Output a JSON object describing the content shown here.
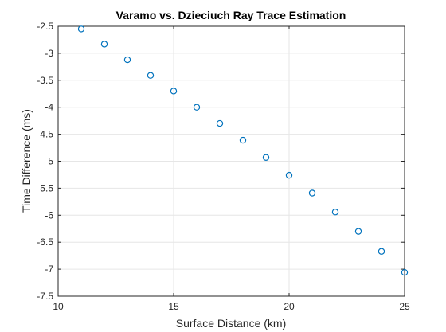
{
  "chart_data": {
    "type": "scatter",
    "title": "Varamo vs. Dzieciuch Ray Trace Estimation",
    "xlabel": "Surface Distance (km)",
    "ylabel": "Time Difference (ms)",
    "xlim": [
      10,
      25
    ],
    "ylim": [
      -7.5,
      -2.5
    ],
    "xticks": [
      10,
      15,
      20,
      25
    ],
    "yticks": [
      -7.5,
      -7,
      -6.5,
      -6,
      -5.5,
      -5,
      -4.5,
      -4,
      -3.5,
      -3,
      -2.5
    ],
    "xtick_labels": [
      "10",
      "15",
      "20",
      "25"
    ],
    "ytick_labels": [
      "-7.5",
      "-7",
      "-6.5",
      "-6",
      "-5.5",
      "-5",
      "-4.5",
      "-4",
      "-3.5",
      "-3",
      "-2.5"
    ],
    "grid": true,
    "marker": "circle-open",
    "colors": {
      "marker_edge": "#0072BD",
      "grid": "#e6e6e6",
      "axis": "#262626"
    },
    "x": [
      11,
      12,
      13,
      14,
      15,
      16,
      17,
      18,
      19,
      20,
      21,
      22,
      23,
      24,
      25
    ],
    "y": [
      -2.55,
      -2.83,
      -3.12,
      -3.41,
      -3.7,
      -4.0,
      -4.3,
      -4.61,
      -4.93,
      -5.26,
      -5.59,
      -5.94,
      -6.3,
      -6.67,
      -7.06
    ]
  }
}
